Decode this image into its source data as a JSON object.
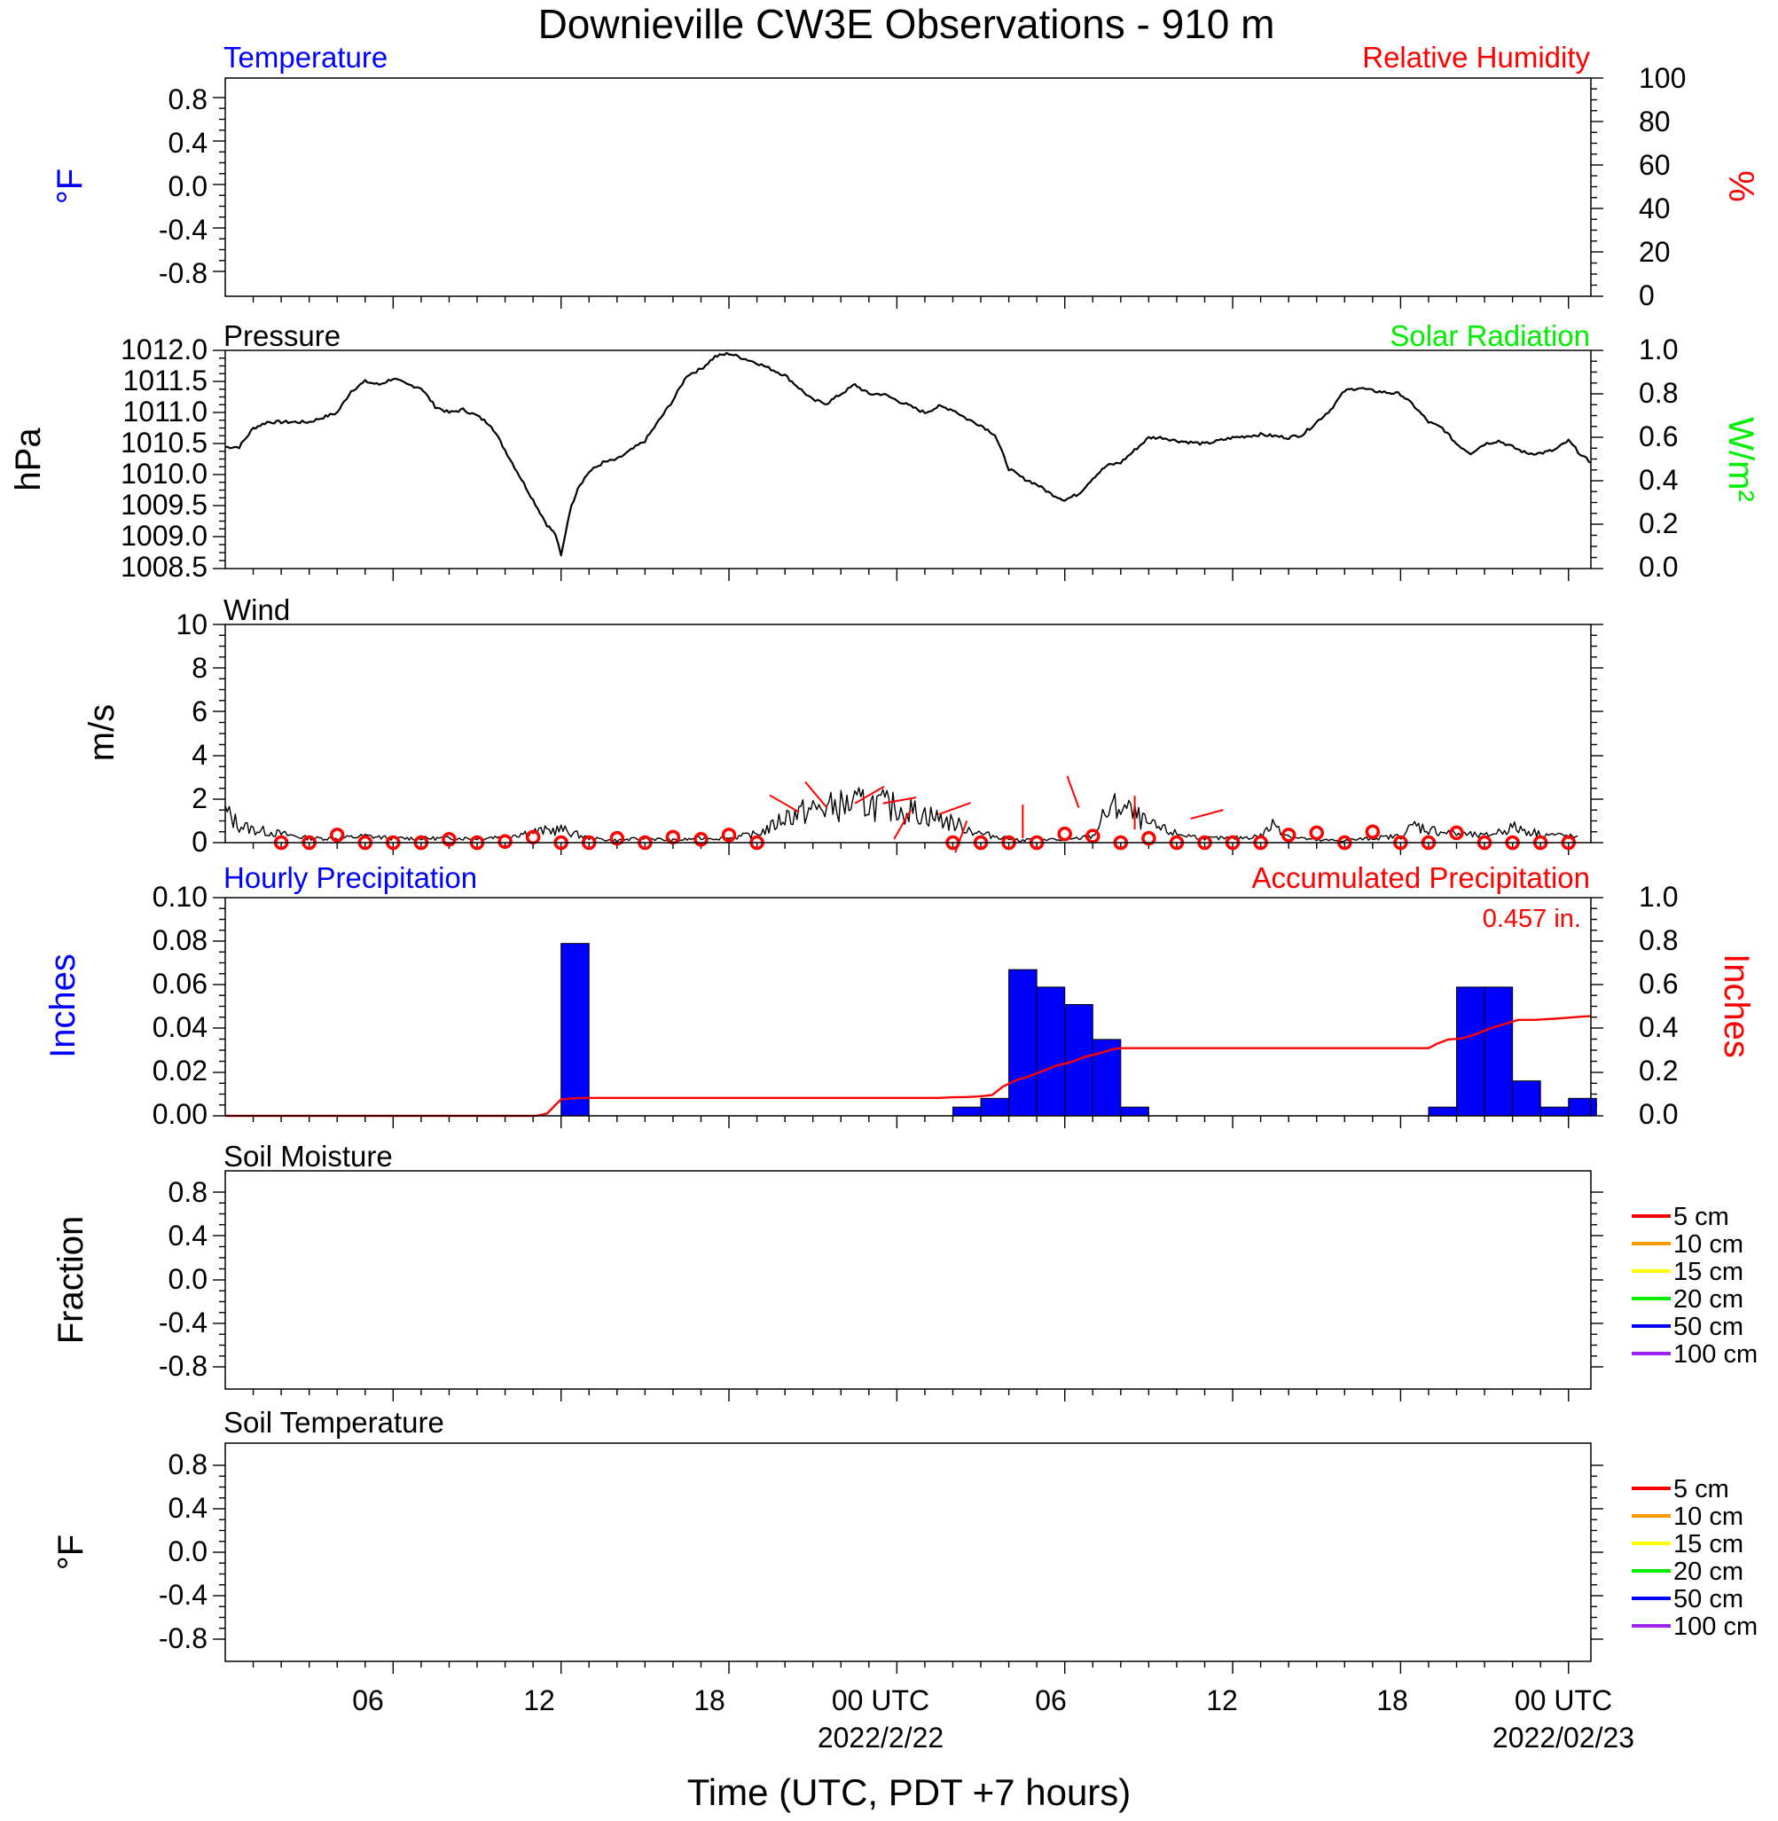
{
  "title": "Downieville CW3E Observations - 910 m",
  "x_axis": {
    "label": "Time (UTC, PDT +7 hours)",
    "tick_labels": [
      "06",
      "12",
      "18",
      "00 UTC",
      "06",
      "12",
      "18",
      "00 UTC"
    ],
    "tick_hours": [
      6,
      12,
      18,
      24,
      30,
      36,
      42,
      48
    ],
    "date_labels": [
      "2022/2/22",
      "2022/02/23"
    ],
    "range_hours": [
      0,
      48.8
    ]
  },
  "colors": {
    "temperature": "#0000ff",
    "humidity": "#ff0000",
    "solar": "#00ee00",
    "hourly_precip": "#0000ff",
    "accum_precip": "#ff0000",
    "wind_circle": "#ff0000"
  },
  "panels": {
    "temperature": {
      "title_left": "Temperature",
      "title_right": "Relative Humidity",
      "ylabel_left": "°F",
      "ylabel_right": "%",
      "left_ticks": [
        "0.8",
        "0.4",
        "0.0",
        "-0.4",
        "-0.8"
      ],
      "right_ticks": [
        "100",
        "80",
        "60",
        "40",
        "20",
        "0"
      ]
    },
    "pressure": {
      "title_left": "Pressure",
      "title_right": "Solar Radiation",
      "ylabel_left": "hPa",
      "ylabel_right": "W/m²",
      "left_ticks": [
        "1012.0",
        "1011.5",
        "1011.0",
        "1010.5",
        "1010.0",
        "1009.5",
        "1009.0",
        "1008.5"
      ],
      "right_ticks": [
        "1.0",
        "0.8",
        "0.6",
        "0.4",
        "0.2",
        "0.0"
      ]
    },
    "wind": {
      "title_left": "Wind",
      "ylabel_left": "m/s",
      "left_ticks": [
        "10",
        "8",
        "6",
        "4",
        "2",
        "0"
      ]
    },
    "precip": {
      "title_left": "Hourly Precipitation",
      "title_right": "Accumulated Precipitation",
      "total_label": "0.457 in.",
      "ylabel_left": "Inches",
      "ylabel_right": "Inches",
      "left_ticks": [
        "0.10",
        "0.08",
        "0.06",
        "0.04",
        "0.02",
        "0.00"
      ],
      "right_ticks": [
        "1.0",
        "0.8",
        "0.6",
        "0.4",
        "0.2",
        "0.0"
      ]
    },
    "soil_moisture": {
      "title_left": "Soil Moisture",
      "ylabel_left": "Fraction",
      "left_ticks": [
        "0.8",
        "0.4",
        "0.0",
        "-0.4",
        "-0.8"
      ]
    },
    "soil_temperature": {
      "title_left": "Soil Temperature",
      "ylabel_left": "°F",
      "left_ticks": [
        "0.8",
        "0.4",
        "0.0",
        "-0.4",
        "-0.8"
      ]
    }
  },
  "soil_legend": [
    {
      "label": "5 cm",
      "color": "#ff0000"
    },
    {
      "label": "10 cm",
      "color": "#ff9900"
    },
    {
      "label": "15 cm",
      "color": "#ffff00"
    },
    {
      "label": "20 cm",
      "color": "#00ee00"
    },
    {
      "label": "50 cm",
      "color": "#0000ff"
    },
    {
      "label": "100 cm",
      "color": "#a020f0"
    }
  ],
  "chart_data": [
    {
      "type": "line",
      "name": "pressure",
      "x_unit": "hours since 2022-02-21 00 UTC",
      "ylim": [
        1008.5,
        1012.0
      ],
      "x": [
        0,
        0.5,
        1,
        1.5,
        2,
        3,
        4,
        4.5,
        5,
        5.5,
        6,
        6.5,
        7,
        7.5,
        8,
        8.5,
        9,
        9.5,
        10,
        10.5,
        11,
        11.5,
        11.8,
        12,
        12.3,
        12.6,
        13,
        13.5,
        14,
        15,
        16,
        16.5,
        17,
        17.5,
        18,
        19,
        20,
        21,
        21.5,
        22,
        22.5,
        23,
        23.5,
        24,
        24.5,
        25,
        25.5,
        26,
        26.5,
        27,
        27.5,
        28,
        28.5,
        29,
        29.5,
        30,
        30.5,
        31,
        31.5,
        32,
        33,
        33.5,
        34,
        35,
        36,
        37,
        38,
        38.5,
        39,
        39.5,
        40,
        40.5,
        41,
        42,
        42.5,
        43,
        43.5,
        44,
        44.5,
        45,
        45.5,
        46,
        46.5,
        47,
        47.5,
        48,
        48.5,
        48.8
      ],
      "y": [
        1010.45,
        1010.45,
        1010.75,
        1010.85,
        1010.85,
        1010.85,
        1011.0,
        1011.35,
        1011.5,
        1011.45,
        1011.55,
        1011.45,
        1011.4,
        1011.1,
        1011.0,
        1011.05,
        1010.95,
        1010.8,
        1010.4,
        1010.0,
        1009.6,
        1009.2,
        1009.05,
        1008.7,
        1009.4,
        1009.8,
        1010.05,
        1010.2,
        1010.25,
        1010.55,
        1011.2,
        1011.6,
        1011.7,
        1011.9,
        1011.95,
        1011.8,
        1011.6,
        1011.2,
        1011.15,
        1011.3,
        1011.45,
        1011.3,
        1011.3,
        1011.2,
        1011.1,
        1011.0,
        1011.1,
        1011.05,
        1010.9,
        1010.8,
        1010.65,
        1010.1,
        1009.95,
        1009.85,
        1009.7,
        1009.6,
        1009.7,
        1009.95,
        1010.15,
        1010.2,
        1010.6,
        1010.6,
        1010.55,
        1010.5,
        1010.6,
        1010.65,
        1010.6,
        1010.65,
        1010.85,
        1011.05,
        1011.35,
        1011.4,
        1011.35,
        1011.3,
        1011.1,
        1010.85,
        1010.75,
        1010.5,
        1010.35,
        1010.5,
        1010.55,
        1010.45,
        1010.35,
        1010.35,
        1010.4,
        1010.55,
        1010.3,
        1010.2
      ]
    },
    {
      "type": "line",
      "name": "wind speed",
      "ylim": [
        0,
        10
      ],
      "x": [
        0,
        0.5,
        1,
        2,
        3,
        4,
        5,
        6,
        7,
        8,
        9,
        10,
        11,
        12,
        13,
        14,
        15,
        16,
        17,
        18,
        19,
        19.5,
        20,
        21,
        22,
        23,
        24,
        25,
        26,
        27,
        28,
        28.5,
        29,
        30,
        31,
        31.5,
        32,
        33,
        34,
        35,
        36,
        37,
        37.5,
        38,
        39,
        40,
        41,
        42,
        42.5,
        43,
        44,
        45,
        46,
        47,
        48,
        48.4
      ],
      "y": [
        1.4,
        0.8,
        0.6,
        0.4,
        0.2,
        0.2,
        0.3,
        0.2,
        0.2,
        0.2,
        0.2,
        0.3,
        0.5,
        0.6,
        0.2,
        0.1,
        0.2,
        0.1,
        0.2,
        0.2,
        0.4,
        0.7,
        1.2,
        1.5,
        1.7,
        1.8,
        1.6,
        1.3,
        0.9,
        0.4,
        0.2,
        0.1,
        0.2,
        0.1,
        0.3,
        1.4,
        1.7,
        0.8,
        0.4,
        0.2,
        0.2,
        0.3,
        0.9,
        0.3,
        0.1,
        0.1,
        0.2,
        0.3,
        0.8,
        0.6,
        0.4,
        0.3,
        0.7,
        0.4,
        0.3,
        0.2
      ]
    },
    {
      "type": "scatter",
      "name": "wind hourly markers",
      "x": [
        2,
        3,
        4,
        5,
        6,
        7,
        8,
        9,
        10,
        11,
        12,
        13,
        14,
        15,
        16,
        17,
        18,
        19,
        26,
        27,
        28,
        29,
        30,
        31,
        32,
        33,
        34,
        35,
        36,
        37,
        38,
        39,
        40,
        41,
        42,
        43,
        44,
        45,
        46,
        47,
        48
      ],
      "y": [
        0.0,
        0.0,
        0.35,
        0.0,
        0.0,
        0.0,
        0.15,
        0.0,
        0.05,
        0.25,
        0.0,
        0.0,
        0.2,
        0.0,
        0.25,
        0.15,
        0.35,
        0.0,
        0.0,
        0.0,
        0.0,
        0.0,
        0.4,
        0.3,
        0.0,
        0.2,
        0.0,
        0.0,
        0.0,
        0.0,
        0.35,
        0.45,
        0.0,
        0.5,
        0.0,
        0.0,
        0.45,
        0.0,
        0.0,
        0.0,
        0.0
      ]
    },
    {
      "type": "line",
      "name": "wind barbs",
      "x": [
        20.5,
        21.5,
        22.5,
        23.5,
        24.5,
        25.5,
        26.5,
        28.5,
        30.5,
        32.5,
        34.5
      ],
      "speed": [
        1.4,
        1.6,
        1.8,
        1.8,
        1.5,
        1.3,
        1.0,
        0.2,
        1.6,
        0.6,
        1.1
      ],
      "direction_deg": [
        300,
        320,
        60,
        80,
        210,
        70,
        200,
        0,
        340,
        0,
        75
      ]
    },
    {
      "type": "bar",
      "name": "Hourly Precipitation",
      "ylim": [
        0,
        0.1
      ],
      "x": [
        11,
        12,
        13,
        14,
        15,
        16,
        17,
        18,
        19,
        20,
        21,
        22,
        23,
        24,
        25,
        26,
        27,
        28,
        29,
        30,
        31,
        32,
        33,
        34,
        35,
        36,
        37,
        38,
        39,
        40,
        41,
        42,
        43,
        44,
        45,
        46,
        47,
        48
      ],
      "values": [
        0,
        0.079,
        0,
        0,
        0,
        0,
        0,
        0,
        0,
        0,
        0,
        0,
        0,
        0,
        0,
        0.004,
        0.008,
        0.067,
        0.059,
        0.051,
        0.035,
        0.004,
        0,
        0,
        0,
        0,
        0,
        0,
        0,
        0,
        0,
        0,
        0.004,
        0.059,
        0.059,
        0.016,
        0.004,
        0.008
      ]
    },
    {
      "type": "line",
      "name": "Accumulated Precipitation",
      "ylim": [
        0,
        1.0
      ],
      "x": [
        0,
        11.1,
        11.5,
        11.8,
        12,
        12.4,
        12.8,
        25,
        25.5,
        26,
        26.5,
        27,
        27.4,
        27.8,
        28.3,
        28.7,
        29.2,
        29.7,
        30.2,
        30.7,
        31.2,
        31.7,
        32,
        33,
        35,
        40,
        43,
        43.3,
        43.7,
        44.2,
        44.7,
        45.3,
        45.7,
        46.2,
        46.8,
        47.5,
        48,
        48.5,
        48.8
      ],
      "y": [
        0,
        0,
        0.01,
        0.05,
        0.075,
        0.08,
        0.082,
        0.082,
        0.082,
        0.085,
        0.086,
        0.09,
        0.095,
        0.135,
        0.165,
        0.18,
        0.205,
        0.23,
        0.245,
        0.27,
        0.285,
        0.305,
        0.31,
        0.31,
        0.31,
        0.31,
        0.31,
        0.33,
        0.35,
        0.355,
        0.375,
        0.405,
        0.42,
        0.44,
        0.44,
        0.445,
        0.45,
        0.455,
        0.457
      ]
    }
  ]
}
